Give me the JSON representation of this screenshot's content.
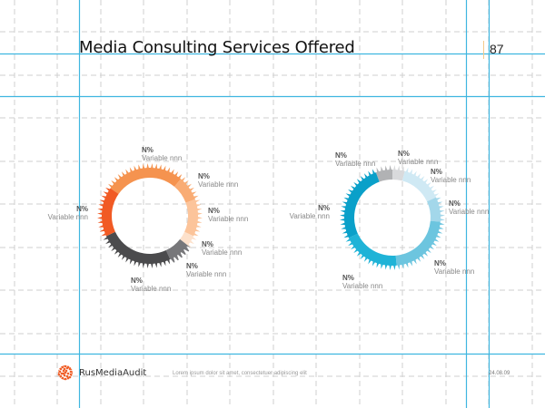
{
  "header": {
    "title": "Media Consulting Services Offered",
    "page_number": "87"
  },
  "chart_data": [
    {
      "type": "pie",
      "variant": "toothed-donut",
      "title": "",
      "segments": [
        {
          "label": "Variable nnn",
          "value_label": "N%",
          "start_deg": 305,
          "end_deg": 400,
          "color": "#f5934f"
        },
        {
          "label": "Variable nnn",
          "value_label": "N%",
          "start_deg": 40,
          "end_deg": 70,
          "color": "#f9ac74"
        },
        {
          "label": "Variable nnn",
          "value_label": "N%",
          "start_deg": 70,
          "end_deg": 115,
          "color": "#fcc49a"
        },
        {
          "label": "Variable nnn",
          "value_label": "N%",
          "start_deg": 115,
          "end_deg": 128,
          "color": "#fde1cb"
        },
        {
          "label": "Variable nnn",
          "value_label": "N%",
          "start_deg": 128,
          "end_deg": 155,
          "color": "#77777a"
        },
        {
          "label": "Variable nnn",
          "value_label": "N%",
          "start_deg": 155,
          "end_deg": 245,
          "color": "#4b4b4d"
        },
        {
          "label": "Variable nnn",
          "value_label": "N%",
          "start_deg": 245,
          "end_deg": 305,
          "color": "#f15a24"
        }
      ]
    },
    {
      "type": "pie",
      "variant": "toothed-donut",
      "title": "",
      "segments": [
        {
          "label": "Variable nnn",
          "value_label": "N%",
          "start_deg": 340,
          "end_deg": 360,
          "color": "#b1b2b4"
        },
        {
          "label": "Variable nnn",
          "value_label": "N%",
          "start_deg": 0,
          "end_deg": 15,
          "color": "#d9dadc"
        },
        {
          "label": "Variable nnn",
          "value_label": "N%",
          "start_deg": 15,
          "end_deg": 65,
          "color": "#cfe9f4"
        },
        {
          "label": "Variable nnn",
          "value_label": "N%",
          "start_deg": 65,
          "end_deg": 95,
          "color": "#a3d7ea"
        },
        {
          "label": "Variable nnn",
          "value_label": "N%",
          "start_deg": 95,
          "end_deg": 175,
          "color": "#6cc5df"
        },
        {
          "label": "Variable nnn",
          "value_label": "N%",
          "start_deg": 175,
          "end_deg": 245,
          "color": "#1fb3d7"
        },
        {
          "label": "Variable nnn",
          "value_label": "N%",
          "start_deg": 245,
          "end_deg": 340,
          "color": "#0aa0c9"
        }
      ]
    }
  ],
  "footer": {
    "brand": "RusMediaAudit",
    "tagline": "Lorem ipsum dolor sit amet, consectetuer adipiscing elit",
    "date": "24.08.09"
  },
  "colors": {
    "guide_blue": "#3fb6e0",
    "grid_gray": "#cfcfcf",
    "logo_orange": "#f0602a"
  }
}
